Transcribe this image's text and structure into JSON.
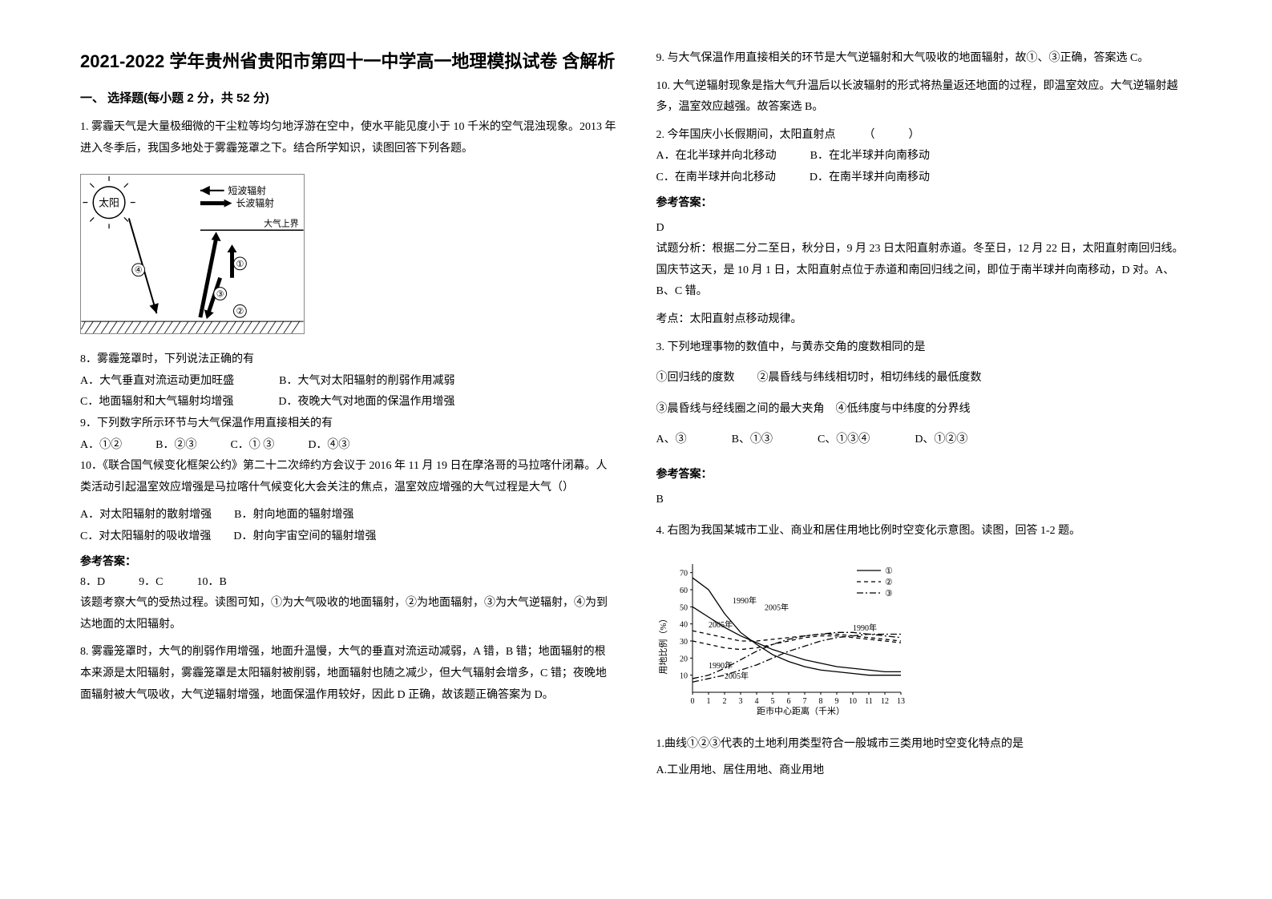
{
  "title": "2021-2022 学年贵州省贵阳市第四十一中学高一地理模拟试卷\n含解析",
  "section1_header": "一、 选择题(每小题 2 分，共 52 分)",
  "q1": {
    "intro": "1. 雾霾天气是大量极细微的干尘粒等均匀地浮游在空中，使水平能见度小于 10 千米的空气混浊现象。2013 年进入冬季后，我国多地处于雾霾笼罩之下。结合所学知识，读图回答下列各题。",
    "diagram": {
      "sun_label": "太阳",
      "legend1": "短波辐射",
      "legend2": "长波辐射",
      "boundary_label": "大气上界",
      "circle1": "①",
      "circle2": "②",
      "circle3": "③",
      "circle4": "④"
    },
    "sub8": {
      "stem": "8．雾霾笼罩时，下列说法正确的有",
      "optA": "A．大气垂直对流运动更加旺盛",
      "optB": "B．大气对太阳辐射的削弱作用减弱",
      "optC": "C．地面辐射和大气辐射均增强",
      "optD": "D．夜晚大气对地面的保温作用增强"
    },
    "sub9": {
      "stem": "9．下列数字所示环节与大气保温作用直接相关的有",
      "optA": "A．①②",
      "optB": "B．②③",
      "optC": "C．① ③",
      "optD": "D．④③"
    },
    "sub10": {
      "stem": "10．《联合国气候变化框架公约》第二十二次缔约方会议于 2016 年 11 月 19 日在摩洛哥的马拉喀什闭幕。人类活动引起温室效应增强是马拉喀什气候变化大会关注的焦点，温室效应增强的大气过程是大气（）",
      "optA": "A．对太阳辐射的散射增强",
      "optB": "B．射向地面的辐射增强",
      "optC": "C．对太阳辐射的吸收增强",
      "optD": "D．射向宇宙空间的辐射增强"
    },
    "answer_header": "参考答案：",
    "answers_line": "8．D　　　9．C　　　10．B",
    "analysis": "该题考察大气的受热过程。读图可知，①为大气吸收的地面辐射，②为地面辐射，③为大气逆辐射，④为到达地面的太阳辐射。",
    "analysis8": "8. 雾霾笼罩时，大气的削弱作用增强，地面升温慢，大气的垂直对流运动减弱，A 错，B 错；地面辐射的根本来源是太阳辐射，雾霾笼罩是太阳辐射被削弱，地面辐射也随之减少，但大气辐射会增多，C 错；夜晚地面辐射被大气吸收，大气逆辐射增强，地面保温作用较好，因此 D 正确，故该题正确答案为 D。",
    "analysis9_col2": "9. 与大气保温作用直接相关的环节是大气逆辐射和大气吸收的地面辐射，故①、③正确，答案选 C。",
    "analysis10_col2": "10. 大气逆辐射现象是指大气升温后以长波辐射的形式将热量返还地面的过程，即温室效应。大气逆辐射越多，温室效应越强。故答案选 B。"
  },
  "q2": {
    "stem": "2. 今年国庆小长假期间，太阳直射点　　　（　　　）",
    "optA": "A．在北半球并向北移动",
    "optB": "B．在北半球并向南移动",
    "optC": "C．在南半球并向北移动",
    "optD": "D．在南半球并向南移动",
    "answer_header": "参考答案：",
    "answer": "D",
    "analysis1": "试题分析：根据二分二至日，秋分日，9 月 23 日太阳直射赤道。冬至日，12 月 22 日，太阳直射南回归线。国庆节这天，是 10 月 1 日，太阳直射点位于赤道和南回归线之间，即位于南半球并向南移动，D 对。A、B、C 错。",
    "analysis2": "考点：太阳直射点移动规律。"
  },
  "q3": {
    "stem": "3. 下列地理事物的数值中，与黄赤交角的度数相同的是",
    "line1": "①回归线的度数　　②晨昏线与纬线相切时，相切纬线的最低度数",
    "line2": "③晨昏线与经线圈之间的最大夹角　④低纬度与中纬度的分界线",
    "optA": "A、③",
    "optB": "B、①③",
    "optC": "C、①③④",
    "optD": "D、①②③",
    "answer_header": "参考答案：",
    "answer": "B"
  },
  "q4": {
    "intro": "4. 右图为我国某城市工业、商业和居住用地比例时空变化示意图。读图，回答 1-2 题。",
    "chart": {
      "ylabel": "用地比例（%）",
      "xlabel": "距市中心距离（千米）",
      "legend1": "①",
      "legend2": "②",
      "legend3": "③",
      "year_labels": [
        "1990年",
        "2005年"
      ],
      "x_ticks": [
        0,
        1,
        2,
        3,
        4,
        5,
        6,
        7,
        8,
        9,
        10,
        11,
        12,
        13
      ],
      "y_ticks": [
        10,
        20,
        30,
        40,
        50,
        60,
        70
      ],
      "series": {
        "s1_1990": {
          "type": "solid",
          "points": [
            [
              0,
              67
            ],
            [
              1,
              60
            ],
            [
              2,
              46
            ],
            [
              3,
              35
            ],
            [
              4,
              28
            ],
            [
              5,
              22
            ],
            [
              6,
              18
            ],
            [
              7,
              15
            ],
            [
              8,
              13
            ],
            [
              9,
              12
            ],
            [
              10,
              11
            ],
            [
              11,
              10
            ],
            [
              12,
              10
            ],
            [
              13,
              10
            ]
          ]
        },
        "s1_2005": {
          "type": "solid",
          "points": [
            [
              0,
              50
            ],
            [
              1,
              44
            ],
            [
              2,
              38
            ],
            [
              3,
              33
            ],
            [
              4,
              29
            ],
            [
              5,
              25
            ],
            [
              6,
              22
            ],
            [
              7,
              19
            ],
            [
              8,
              17
            ],
            [
              9,
              15
            ],
            [
              10,
              14
            ],
            [
              11,
              13
            ],
            [
              12,
              12
            ],
            [
              13,
              12
            ]
          ]
        },
        "s2_1990": {
          "type": "dash",
          "points": [
            [
              0,
              30
            ],
            [
              1,
              28
            ],
            [
              2,
              26
            ],
            [
              3,
              25
            ],
            [
              4,
              26
            ],
            [
              5,
              28
            ],
            [
              6,
              30
            ],
            [
              7,
              32
            ],
            [
              8,
              33
            ],
            [
              9,
              33
            ],
            [
              10,
              32
            ],
            [
              11,
              31
            ],
            [
              12,
              30
            ],
            [
              13,
              29
            ]
          ]
        },
        "s2_2005": {
          "type": "dash",
          "points": [
            [
              0,
              36
            ],
            [
              1,
              34
            ],
            [
              2,
              32
            ],
            [
              3,
              30
            ],
            [
              4,
              30
            ],
            [
              5,
              31
            ],
            [
              6,
              32
            ],
            [
              7,
              33
            ],
            [
              8,
              34
            ],
            [
              9,
              34
            ],
            [
              10,
              33
            ],
            [
              11,
              32
            ],
            [
              12,
              31
            ],
            [
              13,
              30
            ]
          ]
        },
        "s3_1990": {
          "type": "dashdot",
          "points": [
            [
              0,
              8
            ],
            [
              1,
              10
            ],
            [
              2,
              14
            ],
            [
              3,
              19
            ],
            [
              4,
              24
            ],
            [
              5,
              28
            ],
            [
              6,
              31
            ],
            [
              7,
              33
            ],
            [
              8,
              34
            ],
            [
              9,
              35
            ],
            [
              10,
              35
            ],
            [
              11,
              34
            ],
            [
              12,
              33
            ],
            [
              13,
              32
            ]
          ]
        },
        "s3_2005": {
          "type": "dashdot",
          "points": [
            [
              0,
              6
            ],
            [
              1,
              8
            ],
            [
              2,
              10
            ],
            [
              3,
              13
            ],
            [
              4,
              16
            ],
            [
              5,
              20
            ],
            [
              6,
              24
            ],
            [
              7,
              27
            ],
            [
              8,
              30
            ],
            [
              9,
              32
            ],
            [
              10,
              33
            ],
            [
              11,
              34
            ],
            [
              12,
              34
            ],
            [
              13,
              34
            ]
          ]
        }
      },
      "colors": {
        "axis": "#000",
        "grid": "#999"
      }
    },
    "sub1": {
      "stem": "1.曲线①②③代表的土地利用类型符合一般城市三类用地时空变化特点的是",
      "optA": "A.工业用地、居住用地、商业用地"
    }
  }
}
